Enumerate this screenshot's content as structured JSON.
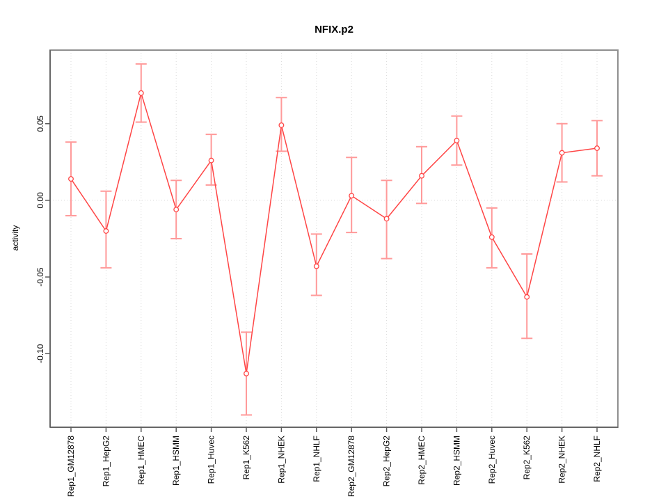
{
  "title": "NFIX.p2",
  "chart_data": {
    "type": "line",
    "title": "NFIX.p2",
    "xlabel": "",
    "ylabel": "activity",
    "legend_position": "none",
    "point_style": "open-circle",
    "error_bars": true,
    "categories": [
      "Rep1_GM12878",
      "Rep1_HepG2",
      "Rep1_HMEC",
      "Rep1_HSMM",
      "Rep1_Huvec",
      "Rep1_K562",
      "Rep1_NHEK",
      "Rep1_NHLF",
      "Rep2_GM12878",
      "Rep2_HepG2",
      "Rep2_HMEC",
      "Rep2_HSMM",
      "Rep2_Huvec",
      "Rep2_K562",
      "Rep2_NHEK",
      "Rep2_NHLF"
    ],
    "series": [
      {
        "name": "activity",
        "values": [
          0.014,
          -0.02,
          0.07,
          -0.006,
          0.026,
          -0.113,
          0.049,
          -0.043,
          0.003,
          -0.012,
          0.016,
          0.039,
          -0.024,
          -0.063,
          0.031,
          0.034
        ],
        "err_low": [
          -0.01,
          -0.044,
          0.051,
          -0.025,
          0.01,
          -0.14,
          0.032,
          -0.062,
          -0.021,
          -0.038,
          -0.002,
          0.023,
          -0.044,
          -0.09,
          0.012,
          0.016
        ],
        "err_high": [
          0.038,
          0.006,
          0.089,
          0.013,
          0.043,
          -0.086,
          0.067,
          -0.022,
          0.028,
          0.013,
          0.035,
          0.055,
          -0.005,
          -0.035,
          0.05,
          0.052
        ]
      }
    ],
    "ylim": [
      -0.148,
      0.098
    ],
    "yticks": [
      {
        "value": 0.05,
        "label": "0.05"
      },
      {
        "value": 0.0,
        "label": "0.00"
      },
      {
        "value": -0.05,
        "label": "-0.05"
      },
      {
        "value": -0.1,
        "label": "-0.10"
      }
    ],
    "grid": {
      "vertical_at_categories": true,
      "horizontal_at": [
        0
      ],
      "style": "dotted"
    }
  },
  "colors": {
    "series_line": "#ff4545",
    "error_bar": "#ff9a9a",
    "gridline": "#d9d9d9",
    "plot_border": "#8f8f8f",
    "axis": "#5a5a5a",
    "text": "#000000",
    "background": "#ffffff"
  }
}
